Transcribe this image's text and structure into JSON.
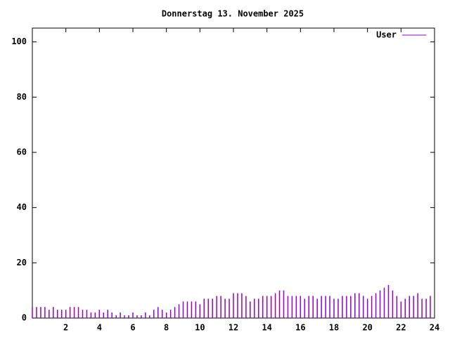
{
  "chart_data": {
    "type": "impulses",
    "title": "Donnerstag 13. November 2025",
    "x": [
      0,
      0.25,
      0.5,
      0.75,
      1,
      1.25,
      1.5,
      1.75,
      2,
      2.25,
      2.5,
      2.75,
      3,
      3.25,
      3.5,
      3.75,
      4,
      4.25,
      4.5,
      4.75,
      5,
      5.25,
      5.5,
      5.75,
      6,
      6.25,
      6.5,
      6.75,
      7,
      7.25,
      7.5,
      7.75,
      8,
      8.25,
      8.5,
      8.75,
      9,
      9.25,
      9.5,
      9.75,
      10,
      10.25,
      10.5,
      10.75,
      11,
      11.25,
      11.5,
      11.75,
      12,
      12.25,
      12.5,
      12.75,
      13,
      13.25,
      13.5,
      13.75,
      14,
      14.25,
      14.5,
      14.75,
      15,
      15.25,
      15.5,
      15.75,
      16,
      16.25,
      16.5,
      16.75,
      17,
      17.25,
      17.5,
      17.75,
      18,
      18.25,
      18.5,
      18.75,
      19,
      19.25,
      19.5,
      19.75,
      20,
      20.25,
      20.5,
      20.75,
      21,
      21.25,
      21.5,
      21.75,
      22,
      22.25,
      22.5,
      22.75,
      23,
      23.25,
      23.5,
      23.75
    ],
    "series": [
      {
        "name": "User",
        "color": "#9400d3",
        "values": [
          4,
          4,
          4,
          4,
          3,
          4,
          3,
          3,
          3,
          4,
          4,
          4,
          3,
          3,
          2,
          2,
          3,
          2,
          3,
          2,
          1,
          2,
          1,
          1,
          2,
          1,
          1,
          2,
          1,
          3,
          4,
          3,
          2,
          3,
          4,
          5,
          6,
          6,
          6,
          6,
          5,
          7,
          7,
          7,
          8,
          8,
          7,
          7,
          9,
          9,
          9,
          8,
          6,
          7,
          7,
          8,
          8,
          8,
          9,
          10,
          10,
          8,
          8,
          8,
          8,
          7,
          8,
          8,
          7,
          8,
          8,
          8,
          7,
          7,
          8,
          8,
          8,
          9,
          9,
          8,
          7,
          8,
          9,
          10,
          11,
          12,
          10,
          8,
          6,
          7,
          8,
          8,
          9,
          7,
          7,
          8
        ]
      }
    ],
    "xlim": [
      0,
      24
    ],
    "xticks": [
      2,
      4,
      6,
      8,
      10,
      12,
      14,
      16,
      18,
      20,
      22,
      24
    ],
    "ylim": [
      0,
      105
    ],
    "yticks": [
      0,
      20,
      40,
      60,
      80,
      100
    ],
    "legend": "top-right"
  }
}
